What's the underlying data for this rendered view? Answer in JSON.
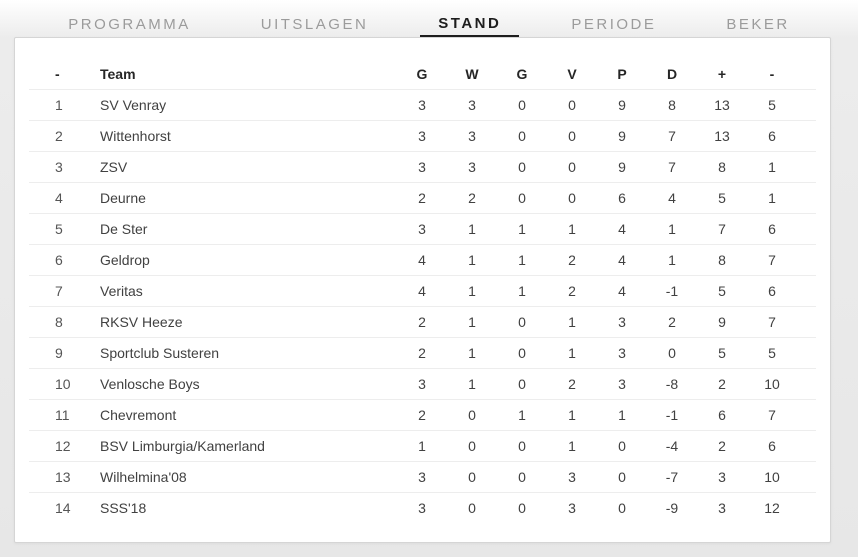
{
  "tab_bar": {
    "tabs": [
      {
        "id": "programma",
        "label": "PROGRAMMA",
        "active": false
      },
      {
        "id": "uitslagen",
        "label": "UITSLAGEN",
        "active": false
      },
      {
        "id": "stand",
        "label": "STAND",
        "active": true
      },
      {
        "id": "periode",
        "label": "PERIODE",
        "active": false
      },
      {
        "id": "beker",
        "label": "BEKER",
        "active": false
      }
    ]
  },
  "standings_table": {
    "columns": [
      {
        "key": "pos",
        "label": "-"
      },
      {
        "key": "team",
        "label": "Team"
      },
      {
        "key": "g",
        "label": "G"
      },
      {
        "key": "w",
        "label": "W"
      },
      {
        "key": "g2",
        "label": "G"
      },
      {
        "key": "v",
        "label": "V"
      },
      {
        "key": "p",
        "label": "P"
      },
      {
        "key": "d",
        "label": "D"
      },
      {
        "key": "plus",
        "label": "+"
      },
      {
        "key": "min",
        "label": "-"
      }
    ],
    "rows": [
      {
        "pos": "1",
        "team": "SV Venray",
        "stats": [
          "3",
          "3",
          "0",
          "0",
          "9",
          "8",
          "13",
          "5"
        ]
      },
      {
        "pos": "2",
        "team": "Wittenhorst",
        "stats": [
          "3",
          "3",
          "0",
          "0",
          "9",
          "7",
          "13",
          "6"
        ]
      },
      {
        "pos": "3",
        "team": "ZSV",
        "stats": [
          "3",
          "3",
          "0",
          "0",
          "9",
          "7",
          "8",
          "1"
        ]
      },
      {
        "pos": "4",
        "team": "Deurne",
        "stats": [
          "2",
          "2",
          "0",
          "0",
          "6",
          "4",
          "5",
          "1"
        ]
      },
      {
        "pos": "5",
        "team": "De Ster",
        "stats": [
          "3",
          "1",
          "1",
          "1",
          "4",
          "1",
          "7",
          "6"
        ]
      },
      {
        "pos": "6",
        "team": "Geldrop",
        "stats": [
          "4",
          "1",
          "1",
          "2",
          "4",
          "1",
          "8",
          "7"
        ]
      },
      {
        "pos": "7",
        "team": "Veritas",
        "stats": [
          "4",
          "1",
          "1",
          "2",
          "4",
          "-1",
          "5",
          "6"
        ]
      },
      {
        "pos": "8",
        "team": "RKSV Heeze",
        "stats": [
          "2",
          "1",
          "0",
          "1",
          "3",
          "2",
          "9",
          "7"
        ]
      },
      {
        "pos": "9",
        "team": "Sportclub Susteren",
        "stats": [
          "2",
          "1",
          "0",
          "1",
          "3",
          "0",
          "5",
          "5"
        ]
      },
      {
        "pos": "10",
        "team": "Venlosche Boys",
        "stats": [
          "3",
          "1",
          "0",
          "2",
          "3",
          "-8",
          "2",
          "10"
        ]
      },
      {
        "pos": "11",
        "team": "Chevremont",
        "stats": [
          "2",
          "0",
          "1",
          "1",
          "1",
          "-1",
          "6",
          "7"
        ]
      },
      {
        "pos": "12",
        "team": "BSV Limburgia/Kamerland",
        "stats": [
          "1",
          "0",
          "0",
          "1",
          "0",
          "-4",
          "2",
          "6"
        ]
      },
      {
        "pos": "13",
        "team": "Wilhelmina'08",
        "stats": [
          "3",
          "0",
          "0",
          "3",
          "0",
          "-7",
          "3",
          "10"
        ]
      },
      {
        "pos": "14",
        "team": "SSS'18",
        "stats": [
          "3",
          "0",
          "0",
          "3",
          "0",
          "-9",
          "3",
          "12"
        ]
      }
    ]
  },
  "colors": {
    "active_tab": "#1d1d1d",
    "inactive_tab": "#9b9b9b",
    "card_background": "#ffffff",
    "card_border": "#d5d5d5",
    "page_background": "#e7e7e7",
    "row_divider": "#ededed",
    "header_text": "#262626",
    "body_text": "#414141"
  }
}
